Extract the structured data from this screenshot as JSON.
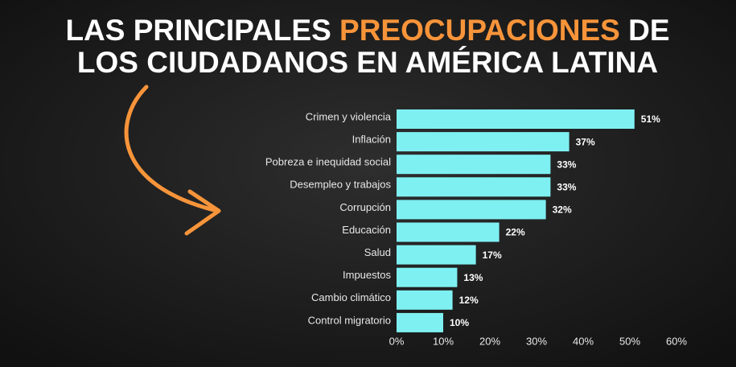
{
  "chart_data": {
    "type": "barh",
    "title": [
      [
        "LAS PRINCIPALES",
        "PREOCUPACIONES",
        "DE"
      ],
      [
        "LOS CIUDADANOS EN AMÉRICA LATINA"
      ]
    ],
    "title_color": "#ffffff",
    "title_highlight_color": "#f7943a",
    "categories": [
      "Crimen y violencia",
      "Inflación",
      "Pobreza e inequidad social",
      "Desempleo y trabajos",
      "Corrupción",
      "Educación",
      "Salud",
      "Impuestos",
      "Cambio climático",
      "Control migratorio"
    ],
    "values": [
      51,
      37,
      33,
      33,
      32,
      22,
      17,
      13,
      12,
      10
    ],
    "value_labels": [
      "51%",
      "37%",
      "33%",
      "33%",
      "32%",
      "22%",
      "17%",
      "13%",
      "12%",
      "10%"
    ],
    "color": "#7ff0f2",
    "xlim": [
      0,
      60
    ],
    "xticks": [
      {
        "value": 0,
        "label": "0%"
      },
      {
        "value": 10,
        "label": "10%"
      },
      {
        "value": 20,
        "label": "20%"
      },
      {
        "value": 30,
        "label": "30%"
      },
      {
        "value": 40,
        "label": "40%"
      },
      {
        "value": 50,
        "label": "50%"
      },
      {
        "value": 60,
        "label": "60%"
      }
    ]
  }
}
